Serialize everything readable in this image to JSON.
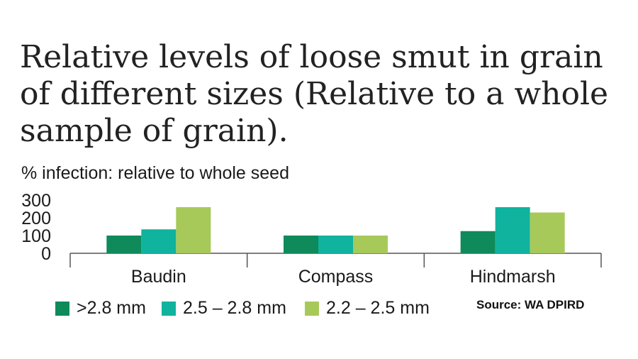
{
  "title": "Relative levels of loose smut in grain of different sizes (Relative to a whole sample of grain).",
  "subtitle": "% infection: relative to whole seed",
  "source": "Source: WA DPIRD",
  "chart_data": {
    "type": "bar",
    "categories": [
      "Baudin",
      "Compass",
      "Hindmarsh"
    ],
    "series": [
      {
        "name": ">2.8 mm",
        "color": "#0e8a5b",
        "values": [
          100,
          100,
          125
        ]
      },
      {
        "name": "2.5 – 2.8 mm",
        "color": "#10b39e",
        "values": [
          135,
          100,
          260
        ]
      },
      {
        "name": "2.2 – 2.5 mm",
        "color": "#a7c95a",
        "values": [
          260,
          100,
          230
        ]
      }
    ],
    "yticks": [
      300,
      200,
      100,
      0
    ],
    "ylim": [
      0,
      300
    ],
    "grid": false,
    "legend_position": "bottom"
  }
}
